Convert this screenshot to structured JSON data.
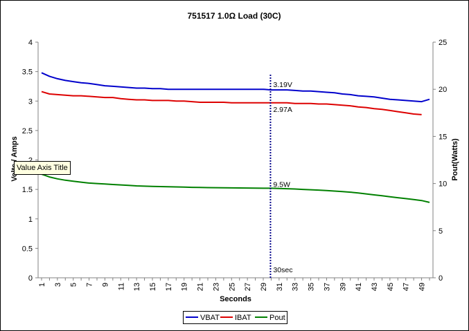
{
  "chart_data": {
    "type": "line",
    "title": "751517 1.0Ω Load (30C)",
    "xlabel": "Seconds",
    "ylabel": "Volts / Amps",
    "y2label": "Pout(Watts)",
    "x": [
      1,
      2,
      3,
      4,
      5,
      6,
      7,
      8,
      9,
      10,
      11,
      12,
      13,
      14,
      15,
      16,
      17,
      18,
      19,
      20,
      21,
      22,
      23,
      24,
      25,
      26,
      27,
      28,
      29,
      30,
      31,
      32,
      33,
      34,
      35,
      36,
      37,
      38,
      39,
      40,
      41,
      42,
      43,
      44,
      45,
      46,
      47,
      48,
      49,
      50
    ],
    "x_tick_labels": [
      "1",
      "3",
      "5",
      "7",
      "9",
      "11",
      "13",
      "15",
      "17",
      "19",
      "21",
      "23",
      "25",
      "27",
      "29",
      "31",
      "33",
      "35",
      "37",
      "39",
      "41",
      "43",
      "45",
      "47",
      "49"
    ],
    "ylim": [
      0,
      4
    ],
    "y_ticks": [
      "0",
      "0.5",
      "1",
      "1.5",
      "2",
      "2.5",
      "3",
      "3.5",
      "4"
    ],
    "y2lim": [
      0,
      25
    ],
    "y2_ticks": [
      "0",
      "5",
      "10",
      "15",
      "20",
      "25"
    ],
    "grid": false,
    "legend_position": "bottom",
    "series": [
      {
        "name": "VBAT",
        "axis": "left",
        "color": "#0000cc",
        "values": [
          3.48,
          3.42,
          3.38,
          3.35,
          3.33,
          3.31,
          3.3,
          3.28,
          3.26,
          3.25,
          3.24,
          3.23,
          3.22,
          3.22,
          3.21,
          3.21,
          3.2,
          3.2,
          3.2,
          3.2,
          3.2,
          3.2,
          3.2,
          3.2,
          3.2,
          3.2,
          3.2,
          3.2,
          3.2,
          3.19,
          3.19,
          3.19,
          3.18,
          3.17,
          3.17,
          3.16,
          3.15,
          3.14,
          3.12,
          3.11,
          3.09,
          3.08,
          3.07,
          3.05,
          3.03,
          3.02,
          3.01,
          3.0,
          2.99,
          3.03
        ]
      },
      {
        "name": "IBAT",
        "axis": "left",
        "color": "#dd0000",
        "values": [
          3.16,
          3.12,
          3.11,
          3.1,
          3.09,
          3.09,
          3.08,
          3.07,
          3.06,
          3.06,
          3.04,
          3.03,
          3.02,
          3.02,
          3.01,
          3.01,
          3.01,
          3.0,
          3.0,
          2.99,
          2.98,
          2.98,
          2.98,
          2.98,
          2.97,
          2.97,
          2.97,
          2.97,
          2.97,
          2.97,
          2.97,
          2.97,
          2.96,
          2.96,
          2.96,
          2.95,
          2.95,
          2.94,
          2.93,
          2.92,
          2.9,
          2.89,
          2.87,
          2.86,
          2.84,
          2.82,
          2.8,
          2.78,
          2.77,
          null
        ]
      },
      {
        "name": "Pout",
        "axis": "right",
        "color": "#008000",
        "values": [
          11.0,
          10.7,
          10.5,
          10.35,
          10.25,
          10.15,
          10.05,
          10.0,
          9.95,
          9.9,
          9.85,
          9.8,
          9.75,
          9.72,
          9.7,
          9.68,
          9.66,
          9.64,
          9.62,
          9.6,
          9.58,
          9.57,
          9.56,
          9.55,
          9.54,
          9.53,
          9.52,
          9.51,
          9.5,
          9.5,
          9.48,
          9.45,
          9.42,
          9.38,
          9.34,
          9.3,
          9.25,
          9.2,
          9.15,
          9.08,
          9.0,
          8.9,
          8.8,
          8.7,
          8.6,
          8.5,
          8.4,
          8.3,
          8.2,
          8.0
        ]
      }
    ],
    "marker": {
      "x": 30,
      "label": "30sec"
    },
    "annotations": [
      {
        "text": "3.19V",
        "series": "VBAT",
        "x": 30,
        "y": 3.19
      },
      {
        "text": "2.97A",
        "series": "IBAT",
        "x": 30,
        "y": 2.97
      },
      {
        "text": "9.5W",
        "series": "Pout",
        "x": 30,
        "y": 9.5
      }
    ]
  },
  "tooltip": {
    "text": "Value Axis Title"
  }
}
